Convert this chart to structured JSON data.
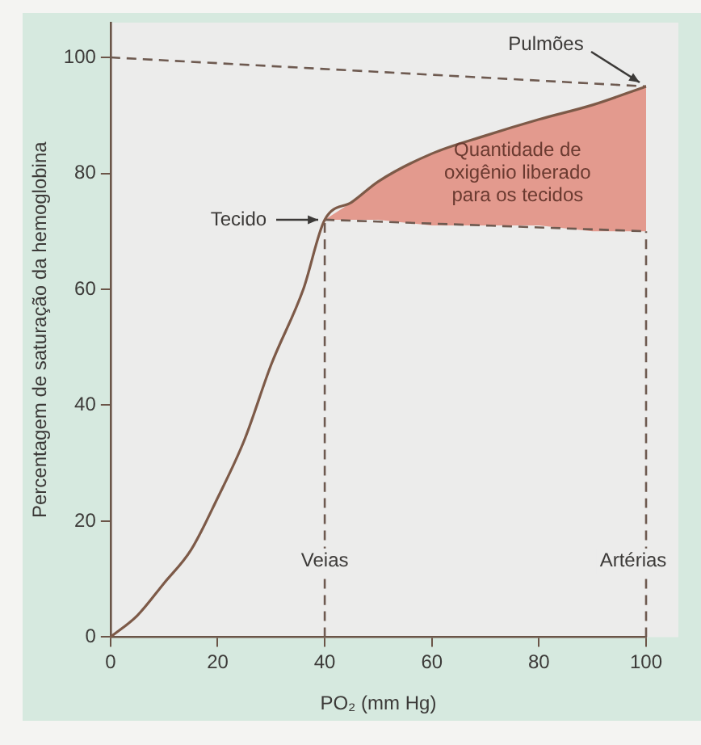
{
  "chart_data": {
    "type": "line",
    "xlabel": "PO₂ (mm Hg)",
    "ylabel": "Percentagem de saturação da hemoglobina",
    "xlim": [
      0,
      100
    ],
    "ylim": [
      0,
      106
    ],
    "xticks": [
      0,
      20,
      40,
      60,
      80,
      100
    ],
    "yticks": [
      0,
      20,
      40,
      60,
      80,
      100
    ],
    "grid": false,
    "legend": false,
    "marker": "none",
    "series": [
      {
        "color": "#7d5a48",
        "line_style": "solid",
        "x": [
          0,
          5,
          10,
          15,
          20,
          25,
          30,
          36,
          40,
          45,
          50,
          60,
          70,
          80,
          90,
          100
        ],
        "values": [
          0,
          3.7,
          9.3,
          15,
          24,
          34,
          47,
          60,
          72,
          75,
          78.6,
          83.4,
          86.5,
          89.3,
          91.8,
          95
        ],
        "lower": [
          null,
          null,
          null,
          null,
          null,
          null,
          null,
          null,
          72,
          72,
          72,
          71,
          71,
          71,
          70,
          70
        ],
        "upper": [
          null,
          null,
          null,
          null,
          null,
          null,
          null,
          null,
          72,
          75,
          78.6,
          83.4,
          86.5,
          89.3,
          91.8,
          95
        ]
      },
      {
        "color": "#6e5a50",
        "line_style": "dashed",
        "x": [
          0,
          100
        ],
        "values": [
          100,
          95
        ]
      },
      {
        "color": "#6e5a50",
        "line_style": "dashed",
        "x": [
          40,
          100
        ],
        "values": [
          72,
          70
        ]
      },
      {
        "color": "#6e5a50",
        "line_style": "dashed",
        "x": [
          40,
          40
        ],
        "values": [
          0,
          72
        ]
      },
      {
        "color": "#6e5a50",
        "line_style": "dashed",
        "x": [
          100,
          100
        ],
        "values": [
          0,
          70
        ]
      }
    ],
    "annotations": [
      "Pulmões",
      "Tecido",
      "Quantidade de oxigênio liberado para os tecidos",
      "Veias",
      "Artérias"
    ]
  }
}
